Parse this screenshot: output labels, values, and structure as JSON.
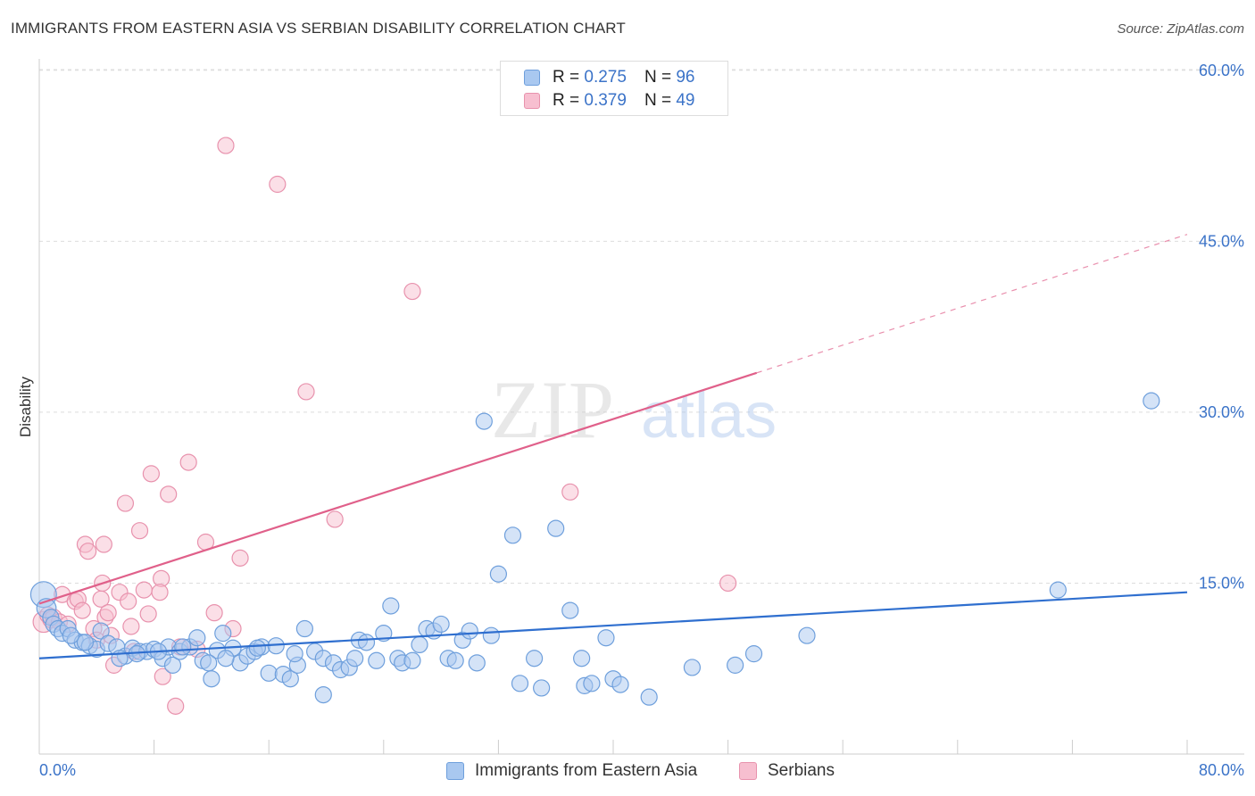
{
  "header": {
    "title": "IMMIGRANTS FROM EASTERN ASIA VS SERBIAN DISABILITY CORRELATION CHART",
    "source": "Source: ZipAtlas.com"
  },
  "legend_top": {
    "rows": [
      {
        "r_label": "R = ",
        "r_value": "0.275",
        "n_label": "N = ",
        "n_value": "96"
      },
      {
        "r_label": "R = ",
        "r_value": "0.379",
        "n_label": "N = ",
        "n_value": "49"
      }
    ]
  },
  "legend_bottom": {
    "items": [
      {
        "label": "Immigrants from Eastern Asia"
      },
      {
        "label": "Serbians"
      }
    ]
  },
  "watermark": {
    "part1": "ZIP",
    "part2": "atlas"
  },
  "colors": {
    "blue_fill": "#a9c8f0",
    "blue_stroke": "#6e9fdc",
    "blue_line": "#2f6fcf",
    "pink_fill": "#f7bfd0",
    "pink_stroke": "#e892ad",
    "pink_line": "#e0608a",
    "tick_label": "#3b73c8",
    "grid": "#dddddd"
  },
  "chart_data": {
    "type": "scatter",
    "title": "IMMIGRANTS FROM EASTERN ASIA VS SERBIAN DISABILITY CORRELATION CHART",
    "xlabel": "",
    "ylabel": "Disability",
    "xlim": [
      0,
      80
    ],
    "ylim": [
      0,
      63
    ],
    "x_tick_labels": [
      "0.0%",
      "80.0%"
    ],
    "y_ticks": [
      15,
      30,
      45,
      60
    ],
    "y_tick_labels": [
      "15.0%",
      "30.0%",
      "45.0%",
      "60.0%"
    ],
    "grid": true,
    "series": [
      {
        "name": "Immigrants from Eastern Asia",
        "color": "#6e9fdc",
        "R": 0.275,
        "N": 96,
        "trend": {
          "x": [
            0,
            80
          ],
          "y": [
            8.4,
            14.2
          ],
          "dashed_extension": false
        },
        "points": [
          [
            0.3,
            14.0,
            1.6
          ],
          [
            0.5,
            12.8,
            1.2
          ],
          [
            0.8,
            12.0,
            1
          ],
          [
            1.0,
            11.4,
            1
          ],
          [
            1.3,
            11.0,
            1
          ],
          [
            1.6,
            10.6,
            1
          ],
          [
            2.0,
            11.0,
            1
          ],
          [
            2.5,
            10.0,
            1
          ],
          [
            3.0,
            9.8,
            1
          ],
          [
            3.5,
            9.5,
            1
          ],
          [
            4.0,
            9.2,
            1
          ],
          [
            4.3,
            10.8,
            1
          ],
          [
            4.8,
            9.7,
            1
          ],
          [
            5.4,
            9.4,
            1
          ],
          [
            6.0,
            8.6,
            1
          ],
          [
            6.5,
            9.3,
            1
          ],
          [
            7.0,
            9.0,
            1
          ],
          [
            7.5,
            9.0,
            1
          ],
          [
            8.0,
            9.2,
            1
          ],
          [
            8.6,
            8.4,
            1
          ],
          [
            9.0,
            9.4,
            1
          ],
          [
            9.3,
            7.8,
            1
          ],
          [
            9.8,
            9.0,
            1
          ],
          [
            10.5,
            9.4,
            1
          ],
          [
            11.0,
            10.2,
            1
          ],
          [
            11.4,
            8.2,
            1
          ],
          [
            12.0,
            6.6,
            1
          ],
          [
            12.4,
            9.1,
            1
          ],
          [
            12.8,
            10.6,
            1
          ],
          [
            13.5,
            9.3,
            1
          ],
          [
            14.0,
            8.0,
            1
          ],
          [
            14.5,
            8.6,
            1
          ],
          [
            15.0,
            9.0,
            1
          ],
          [
            15.5,
            9.4,
            1
          ],
          [
            16.0,
            7.1,
            1
          ],
          [
            16.5,
            9.5,
            1
          ],
          [
            17.0,
            7.0,
            1
          ],
          [
            17.5,
            6.6,
            1
          ],
          [
            18.0,
            7.8,
            1
          ],
          [
            18.5,
            11.0,
            1
          ],
          [
            19.2,
            9.0,
            1
          ],
          [
            19.8,
            8.4,
            1
          ],
          [
            20.5,
            8.0,
            1
          ],
          [
            21.0,
            7.4,
            1
          ],
          [
            21.6,
            7.6,
            1
          ],
          [
            22.0,
            8.4,
            1
          ],
          [
            22.3,
            10.0,
            1
          ],
          [
            22.8,
            9.8,
            1
          ],
          [
            23.5,
            8.2,
            1
          ],
          [
            24.0,
            10.6,
            1
          ],
          [
            24.5,
            13.0,
            1
          ],
          [
            25.0,
            8.4,
            1
          ],
          [
            25.3,
            8.0,
            1
          ],
          [
            26.5,
            9.6,
            1
          ],
          [
            27.0,
            11.0,
            1
          ],
          [
            27.5,
            10.8,
            1
          ],
          [
            28.0,
            11.4,
            1
          ],
          [
            28.5,
            8.4,
            1
          ],
          [
            29.0,
            8.2,
            1
          ],
          [
            29.5,
            10.0,
            1
          ],
          [
            30.0,
            10.8,
            1
          ],
          [
            30.5,
            8.0,
            1
          ],
          [
            31.0,
            29.2,
            1
          ],
          [
            31.5,
            10.4,
            1
          ],
          [
            32.0,
            15.8,
            1
          ],
          [
            33.0,
            19.2,
            1
          ],
          [
            33.5,
            6.2,
            1
          ],
          [
            34.5,
            8.4,
            1
          ],
          [
            35.0,
            5.8,
            1
          ],
          [
            36.0,
            19.8,
            1
          ],
          [
            37.0,
            12.6,
            1
          ],
          [
            38.0,
            6.0,
            1
          ],
          [
            38.5,
            6.2,
            1
          ],
          [
            39.5,
            10.2,
            1
          ],
          [
            40.0,
            6.6,
            1
          ],
          [
            40.5,
            6.1,
            1
          ],
          [
            42.5,
            5.0,
            1
          ],
          [
            45.5,
            7.6,
            1
          ],
          [
            48.5,
            7.8,
            1
          ],
          [
            49.8,
            8.8,
            1
          ],
          [
            53.5,
            10.4,
            1
          ],
          [
            71.0,
            14.4,
            1
          ],
          [
            77.5,
            31.0,
            1
          ],
          [
            19.8,
            5.2,
            1
          ],
          [
            5.6,
            8.4,
            1
          ],
          [
            3.2,
            9.8,
            1
          ],
          [
            2.2,
            10.4,
            1
          ],
          [
            6.8,
            8.8,
            1
          ],
          [
            11.8,
            8.0,
            1
          ],
          [
            15.2,
            9.3,
            1
          ],
          [
            17.8,
            8.8,
            1
          ],
          [
            26.0,
            8.2,
            1
          ],
          [
            37.8,
            8.4,
            1
          ],
          [
            13.0,
            8.4,
            1
          ],
          [
            10.0,
            9.4,
            1
          ],
          [
            8.3,
            9.0,
            1
          ]
        ]
      },
      {
        "name": "Serbians",
        "color": "#e892ad",
        "R": 0.379,
        "N": 49,
        "trend": {
          "x": [
            0,
            80
          ],
          "y": [
            13.2,
            45.6
          ],
          "solid_until_x": 50,
          "dashed_extension": true
        },
        "points": [
          [
            0.3,
            11.6,
            1.3
          ],
          [
            0.6,
            12.2,
            1
          ],
          [
            0.8,
            11.8,
            1
          ],
          [
            1.0,
            12.0,
            1
          ],
          [
            1.4,
            11.6,
            1
          ],
          [
            1.6,
            14.0,
            1
          ],
          [
            2.0,
            11.4,
            1
          ],
          [
            2.5,
            13.4,
            1
          ],
          [
            2.7,
            13.6,
            1
          ],
          [
            3.0,
            12.6,
            1
          ],
          [
            3.2,
            18.4,
            1
          ],
          [
            3.4,
            17.8,
            1
          ],
          [
            3.8,
            11.0,
            1
          ],
          [
            4.0,
            10.0,
            1
          ],
          [
            4.3,
            13.6,
            1
          ],
          [
            4.6,
            12.0,
            1
          ],
          [
            4.8,
            12.4,
            1
          ],
          [
            4.4,
            15.0,
            1
          ],
          [
            4.5,
            18.4,
            1
          ],
          [
            5.0,
            10.4,
            1
          ],
          [
            5.2,
            7.8,
            1
          ],
          [
            5.6,
            14.2,
            1
          ],
          [
            6.0,
            22.0,
            1
          ],
          [
            6.2,
            13.4,
            1
          ],
          [
            6.6,
            9.0,
            1
          ],
          [
            7.0,
            19.6,
            1
          ],
          [
            7.3,
            14.4,
            1
          ],
          [
            7.6,
            12.3,
            1
          ],
          [
            7.8,
            24.6,
            1
          ],
          [
            8.5,
            15.4,
            1
          ],
          [
            8.6,
            6.8,
            1
          ],
          [
            9.0,
            22.8,
            1
          ],
          [
            9.5,
            4.2,
            1
          ],
          [
            10.4,
            25.6,
            1
          ],
          [
            11.0,
            9.2,
            1
          ],
          [
            11.6,
            18.6,
            1
          ],
          [
            12.2,
            12.4,
            1
          ],
          [
            13.0,
            53.4,
            1
          ],
          [
            14.0,
            17.2,
            1
          ],
          [
            16.6,
            50.0,
            1
          ],
          [
            18.6,
            31.8,
            1
          ],
          [
            20.6,
            20.6,
            1
          ],
          [
            26.0,
            40.6,
            1
          ],
          [
            37.0,
            23.0,
            1
          ],
          [
            48.0,
            15.0,
            1
          ],
          [
            6.4,
            11.2,
            1
          ],
          [
            9.8,
            9.4,
            1
          ],
          [
            13.5,
            11.0,
            1
          ],
          [
            8.4,
            14.2,
            1
          ]
        ]
      }
    ]
  }
}
